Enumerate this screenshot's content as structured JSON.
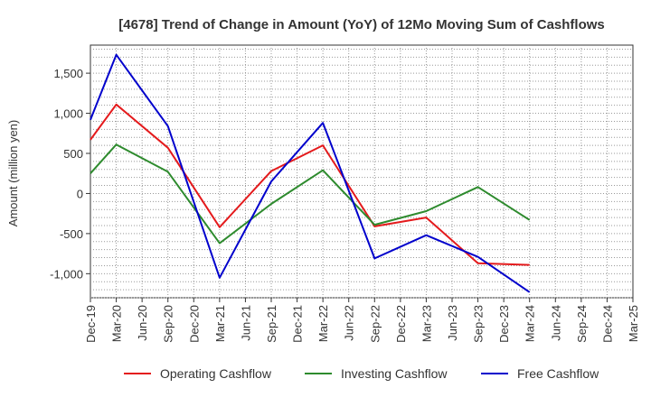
{
  "chart_data": {
    "type": "line",
    "title": "[4678]  Trend of Change in Amount (YoY) of 12Mo Moving Sum of Cashflows",
    "ylabel": "Amount (million yen)",
    "xlabel": "",
    "ylim": [
      -1300,
      1850
    ],
    "yticks": [
      -1000,
      -500,
      0,
      500,
      1000,
      1500
    ],
    "ytick_labels": [
      "-1,000",
      "-500",
      "0",
      "500",
      "1,000",
      "1,500"
    ],
    "categories": [
      "Dec-19",
      "Mar-20",
      "Jun-20",
      "Sep-20",
      "Dec-20",
      "Mar-21",
      "Jun-21",
      "Sep-21",
      "Dec-21",
      "Mar-22",
      "Jun-22",
      "Sep-22",
      "Dec-22",
      "Mar-23",
      "Jun-23",
      "Sep-23",
      "Dec-23",
      "Mar-24",
      "Jun-24",
      "Sep-24",
      "Dec-24",
      "Mar-25"
    ],
    "grid": true,
    "legend_position": "bottom",
    "series": [
      {
        "name": "Operating Cashflow",
        "color": "#e41a1c",
        "values": [
          670,
          1110,
          null,
          570,
          null,
          -420,
          null,
          280,
          null,
          600,
          null,
          -410,
          null,
          -300,
          null,
          -870,
          null,
          -890,
          null,
          null,
          null,
          null
        ]
      },
      {
        "name": "Investing Cashflow",
        "color": "#2e8b2e",
        "values": [
          250,
          610,
          null,
          270,
          null,
          -620,
          null,
          -130,
          null,
          290,
          null,
          -390,
          null,
          -220,
          null,
          80,
          null,
          -330,
          null,
          null,
          null,
          null
        ]
      },
      {
        "name": "Free Cashflow",
        "color": "#0000cc",
        "values": [
          920,
          1730,
          null,
          840,
          null,
          -1050,
          null,
          150,
          null,
          880,
          null,
          -810,
          null,
          -520,
          null,
          -790,
          null,
          -1230,
          null,
          null,
          null,
          null
        ]
      }
    ]
  }
}
